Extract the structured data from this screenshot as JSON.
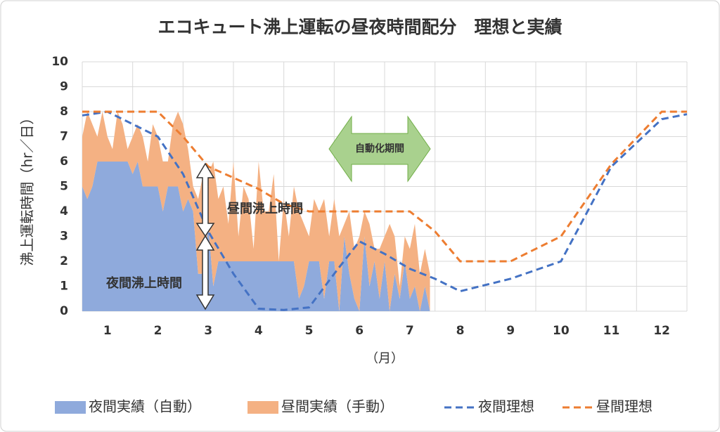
{
  "chart_data": {
    "type": "area_line",
    "title": "エコキュート沸上運転の昼夜時間配分　理想と実績",
    "y_label": "沸上運転時間（hr／日）",
    "x_label": "（月）",
    "xlim": [
      0.5,
      12.5
    ],
    "xticks": [
      1,
      2,
      3,
      4,
      5,
      6,
      7,
      8,
      9,
      10,
      11,
      12
    ],
    "ylim": [
      0,
      10
    ],
    "yticks": [
      0,
      1,
      2,
      3,
      4,
      5,
      6,
      7,
      8,
      9,
      10
    ],
    "grid": true,
    "legend": "bottom",
    "annotations": [
      "自動化期間",
      "昼間沸上時間",
      "夜間沸上時間"
    ],
    "series": [
      {
        "name": "夜間実績（自動）",
        "kind": "area",
        "color": "#8faadc",
        "x": [
          0.5,
          0.6,
          0.7,
          0.8,
          0.9,
          1.0,
          1.1,
          1.2,
          1.3,
          1.4,
          1.5,
          1.6,
          1.7,
          1.8,
          1.9,
          2.0,
          2.1,
          2.2,
          2.3,
          2.4,
          2.5,
          2.6,
          2.7,
          2.8,
          2.9,
          3.0,
          3.1,
          3.2,
          3.3,
          3.4,
          3.5,
          3.6,
          3.7,
          3.8,
          3.9,
          4.0,
          4.1,
          4.2,
          4.3,
          4.4,
          4.5,
          4.6,
          4.7,
          4.8,
          4.9,
          5.0,
          5.1,
          5.2,
          5.3,
          5.4,
          5.5,
          5.6,
          5.7,
          5.8,
          5.9,
          6.0,
          6.1,
          6.2,
          6.3,
          6.4,
          6.5,
          6.6,
          6.7,
          6.8,
          6.9,
          7.0,
          7.1,
          7.2,
          7.3,
          7.4
        ],
        "values": [
          5,
          4.5,
          5,
          6,
          6,
          6,
          6,
          6,
          6,
          6,
          5.5,
          6,
          5,
          5,
          5,
          5,
          4,
          5,
          5,
          5,
          4,
          4.5,
          4,
          1.5,
          1.5,
          3.5,
          1,
          2,
          2,
          2,
          2,
          2,
          2,
          2,
          2,
          2,
          2,
          2,
          2,
          2,
          2,
          2,
          2,
          0.5,
          1,
          2,
          2,
          2,
          0.5,
          2,
          2,
          0,
          3,
          1.5,
          0.5,
          0,
          3,
          1,
          2,
          0.5,
          2,
          0,
          1.5,
          0.5,
          2,
          0.5,
          1,
          0,
          1,
          0
        ]
      },
      {
        "name": "昼間実績（手動）",
        "kind": "area",
        "stacked": true,
        "color": "#f4b183",
        "x": [
          0.5,
          0.6,
          0.7,
          0.8,
          0.9,
          1.0,
          1.1,
          1.2,
          1.3,
          1.4,
          1.5,
          1.6,
          1.7,
          1.8,
          1.9,
          2.0,
          2.1,
          2.2,
          2.3,
          2.4,
          2.5,
          2.6,
          2.7,
          2.8,
          2.9,
          3.0,
          3.1,
          3.2,
          3.3,
          3.4,
          3.5,
          3.6,
          3.7,
          3.8,
          3.9,
          4.0,
          4.1,
          4.2,
          4.3,
          4.4,
          4.5,
          4.6,
          4.7,
          4.8,
          4.9,
          5.0,
          5.1,
          5.2,
          5.3,
          5.4,
          5.5,
          5.6,
          5.7,
          5.8,
          5.9,
          6.0,
          6.1,
          6.2,
          6.3,
          6.4,
          6.5,
          6.6,
          6.7,
          6.8,
          6.9,
          7.0,
          7.1,
          7.2,
          7.3,
          7.4
        ],
        "values": [
          2,
          3.5,
          2.5,
          1,
          2,
          1,
          0.5,
          2,
          1.5,
          0.5,
          1.5,
          1.5,
          2,
          1,
          2.5,
          2,
          2,
          1,
          2.5,
          3,
          3.5,
          2,
          1,
          3,
          4,
          2,
          5,
          2.5,
          3,
          1.5,
          4,
          1,
          3,
          2.5,
          0.5,
          4,
          2,
          2,
          3.5,
          0,
          2.5,
          1,
          3,
          3.5,
          2.5,
          1,
          2.5,
          2,
          4,
          1,
          2.5,
          3,
          0.5,
          2.5,
          2,
          3,
          1,
          2.5,
          0.5,
          2,
          1,
          3.5,
          1.5,
          0.5,
          1,
          2,
          2.5,
          1.5,
          1.5,
          1.5
        ]
      },
      {
        "name": "夜間理想",
        "kind": "line",
        "color": "#4472c4",
        "x": [
          0.5,
          1,
          2,
          2.5,
          3,
          3.5,
          4,
          4.5,
          5,
          5.5,
          6,
          6.5,
          7,
          7.5,
          8,
          9,
          10,
          11,
          12,
          12.5
        ],
        "values": [
          7.85,
          8,
          7,
          5.5,
          3.2,
          1.5,
          0.1,
          0.05,
          0.15,
          1.5,
          2.8,
          2.3,
          1.7,
          1.3,
          0.8,
          1.3,
          2,
          5.8,
          7.7,
          7.9
        ]
      },
      {
        "name": "昼間理想",
        "kind": "line",
        "color": "#ed7d31",
        "x": [
          0.5,
          1,
          2,
          2.5,
          3,
          4,
          4.5,
          5,
          6,
          7,
          7.5,
          8,
          9,
          10,
          11,
          12,
          12.5
        ],
        "values": [
          8,
          8,
          8,
          7,
          5.8,
          4.9,
          4.3,
          4,
          4,
          4,
          3.2,
          2,
          2,
          3,
          5.9,
          8,
          8
        ]
      }
    ]
  }
}
